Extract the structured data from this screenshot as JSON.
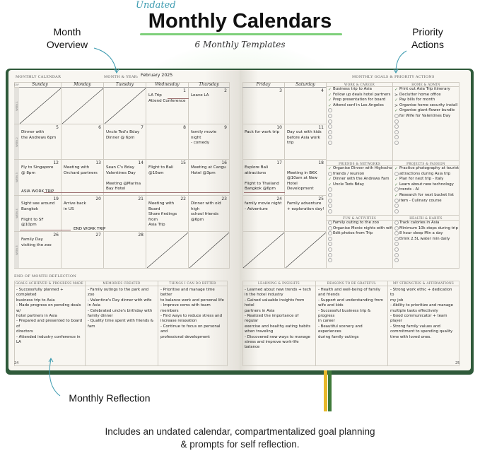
{
  "header": {
    "tag": "Undated",
    "title": "Monthly Calendars",
    "subtitle": "6 Monthly Templates"
  },
  "annotations": {
    "month_overview": "Month\nOverview",
    "priority_actions": "Priority\nActions",
    "monthly_reflection": "Monthly Reflection"
  },
  "footer": {
    "line1": "Includes an undated calendar, compartmentalized goal planning",
    "line2": "& prompts for self reflection."
  },
  "colors": {
    "cover": "#2f5a3a",
    "accent_green": "#7ed07a",
    "arrow_blue": "#3d9bb0",
    "trip_line": "#9c6f6f",
    "ribbon_yellow": "#e8b82a",
    "ribbon_green": "#3f7a3a"
  },
  "calendar": {
    "label": "MONTHLY CALENDAR",
    "month_year_label": "MONTH & YEAR:",
    "month_year_value": "February 2025",
    "day_label": "DAY",
    "days": [
      "Sunday",
      "Monday",
      "Tuesday",
      "Wednesday",
      "Thursday",
      "Friday",
      "Saturday"
    ],
    "weeks": [
      {
        "label": "WEEK 1",
        "cells": [
          {
            "crossed": true
          },
          {
            "crossed": true
          },
          {
            "crossed": true
          },
          {
            "day": "1",
            "text": "LA Trip\nAttend Conference"
          },
          {
            "day": "2",
            "text": "Leave LA"
          },
          {
            "day": "3",
            "text": ""
          },
          {
            "day": "4",
            "text": ""
          }
        ]
      },
      {
        "label": "WEEK 2",
        "cells": [
          {
            "day": "5",
            "text": "Dinner with\nthe Andrews 6pm"
          },
          {
            "day": "6",
            "text": ""
          },
          {
            "day": "7",
            "text": "Uncle Ted's Bday\nDinner @ 6pm"
          },
          {
            "day": "8",
            "text": ""
          },
          {
            "day": "9",
            "text": "family movie night\n- comedy"
          },
          {
            "day": "10",
            "text": "Pack for work trip"
          },
          {
            "day": "11",
            "text": "Day out with kids\nbefore Asia work trip"
          }
        ]
      },
      {
        "label": "WEEK 3",
        "cells": [
          {
            "day": "12",
            "text": "Fly to Singapore\n@ 8pm"
          },
          {
            "day": "13",
            "text": "Meeting with\nOrchard partners"
          },
          {
            "day": "14",
            "text": "Sean C's Bday\nValentines Day\n\nMeeting @Marina\nBay Hotel"
          },
          {
            "day": "15",
            "text": "Flight to Bali\n@10am"
          },
          {
            "day": "16",
            "text": "Meeting at Cangu\nHotel @3pm"
          },
          {
            "day": "17",
            "text": "Explore Bali\nattractions\n\nFlight to Thailand\nBangkok @6pm"
          },
          {
            "day": "18",
            "text": "\nMeeting in BKK\n@10am at New\nHotel Development"
          }
        ]
      },
      {
        "label": "WEEK 4",
        "cells": [
          {
            "day": "19",
            "text": "Sight see around\nBangkok\n\nFlight to SF @10pm"
          },
          {
            "day": "20",
            "text": "Arrive back\nin US"
          },
          {
            "day": "21",
            "text": ""
          },
          {
            "day": "22",
            "text": "Meeting with Board\nShare findings from\nAsia Trip"
          },
          {
            "day": "23",
            "text": "Dinner with old high\nschool friends @6pm"
          },
          {
            "day": "24",
            "text": "family movie night\n- Adventure"
          },
          {
            "day": "25",
            "text": "Family adventure\n+ exploration day!"
          }
        ]
      },
      {
        "label": "WEEK 5",
        "cells": [
          {
            "day": "26",
            "text": "Family Day\nvisiting the zoo"
          },
          {
            "day": "27",
            "text": ""
          },
          {
            "day": "28",
            "text": ""
          },
          {
            "crossed": true
          },
          {
            "crossed": true
          },
          {
            "crossed": true
          },
          {
            "crossed": true
          }
        ]
      }
    ],
    "trips": {
      "asia": "ASIA WORK TRIP",
      "end": "END WORK TRIP"
    }
  },
  "goals": {
    "label": "MONTHLY GOALS & PRIORITY ACTIONS",
    "sections": [
      {
        "title": "WORK & CAREER",
        "items": [
          {
            "s": "check",
            "t": "Business trip to Asia"
          },
          {
            "s": "check",
            "t": "Follow up deals hotel partners"
          },
          {
            "s": "check",
            "t": "Prep presentation for board"
          },
          {
            "s": "check",
            "t": "Attend conf in Los Angeles"
          },
          {
            "s": "empty",
            "t": ""
          },
          {
            "s": "empty",
            "t": ""
          },
          {
            "s": "empty",
            "t": ""
          },
          {
            "s": "empty",
            "t": ""
          },
          {
            "s": "empty",
            "t": ""
          },
          {
            "s": "empty",
            "t": ""
          },
          {
            "s": "empty",
            "t": ""
          }
        ]
      },
      {
        "title": "HOME & ADMIN",
        "items": [
          {
            "s": "check",
            "t": "Print out Asia Trip itinerary"
          },
          {
            "s": "arrow",
            "t": "Declutter home office"
          },
          {
            "s": "check",
            "t": "Pay bills for month"
          },
          {
            "s": "arrow",
            "t": "Organise home security install"
          },
          {
            "s": "check",
            "t": "Organise giant flower bundle"
          },
          {
            "s": "empty",
            "t": "   for Wife for Valentines Day"
          },
          {
            "s": "empty",
            "t": ""
          },
          {
            "s": "empty",
            "t": ""
          },
          {
            "s": "empty",
            "t": ""
          },
          {
            "s": "empty",
            "t": ""
          },
          {
            "s": "empty",
            "t": ""
          }
        ]
      },
      {
        "title": "FRIENDS & NETWORKS",
        "items": [
          {
            "s": "check",
            "t": "Organise Dinner with Highschool"
          },
          {
            "s": "empty",
            "t": "  friends / reunion"
          },
          {
            "s": "check",
            "t": "Dinner with the Andrews Fam"
          },
          {
            "s": "check",
            "t": "Uncle Teds Bday"
          },
          {
            "s": "empty",
            "t": ""
          },
          {
            "s": "empty",
            "t": ""
          },
          {
            "s": "empty",
            "t": ""
          },
          {
            "s": "empty",
            "t": ""
          },
          {
            "s": "empty",
            "t": ""
          }
        ]
      },
      {
        "title": "PROJECTS & PASSION",
        "items": [
          {
            "s": "check",
            "t": "Practice photography at tourist"
          },
          {
            "s": "empty",
            "t": "  attractions during Asia trip"
          },
          {
            "s": "check",
            "t": "Plan for next trip - Italy"
          },
          {
            "s": "check",
            "t": "Learn about new technology"
          },
          {
            "s": "empty",
            "t": "  trends - AI"
          },
          {
            "s": "check",
            "t": "Research for next bucket list"
          },
          {
            "s": "empty",
            "t": "  item - Culinary course"
          },
          {
            "s": "empty",
            "t": ""
          },
          {
            "s": "empty",
            "t": ""
          }
        ]
      },
      {
        "title": "FUN & ACTIVITIES",
        "items": [
          {
            "s": "empty",
            "t": "Family outing to the zoo"
          },
          {
            "s": "empty",
            "t": "Organise Movie nights with wife"
          },
          {
            "s": "empty",
            "t": "Edit photos from Trip"
          },
          {
            "s": "empty",
            "t": ""
          },
          {
            "s": "empty",
            "t": ""
          },
          {
            "s": "empty",
            "t": ""
          },
          {
            "s": "empty",
            "t": ""
          },
          {
            "s": "empty",
            "t": ""
          }
        ]
      },
      {
        "title": "HEALTH & HABITS",
        "items": [
          {
            "s": "empty",
            "t": "Track calories in Asia"
          },
          {
            "s": "empty",
            "t": "Minimum 10k steps during trip"
          },
          {
            "s": "empty",
            "t": "8 hour sleep Min a day"
          },
          {
            "s": "empty",
            "t": "Drink 2.5L water min daily"
          },
          {
            "s": "empty",
            "t": ""
          },
          {
            "s": "empty",
            "t": ""
          },
          {
            "s": "empty",
            "t": ""
          },
          {
            "s": "empty",
            "t": ""
          }
        ]
      }
    ]
  },
  "reflection": {
    "label": "END OF MONTH REFLECTION",
    "columns": [
      {
        "title": "GOALS ACHIEVED & PROGRESS MADE",
        "text": "- Successfully planned + completed\n   business trip to Asia\n- Made progress on pending deals w/\nhotel partners in Asia\n- Prepared and presented to board of\ndirectors\n- Attended industry conference in LA"
      },
      {
        "title": "MEMORIES CREATED",
        "text": "- Family outings to the park and zoo\n- Valentine's Day dinner with wife\n  in Asia\n- Celebrated uncle's birthday with\n  family dinner\n- Quality time spent with friends &\n  fam"
      },
      {
        "title": "THINGS I CAN DO BETTER",
        "text": "- Prioritise and manage time better\n   to balance work and personal life\n- Improve coms with team members\n- Find ways to reduce stress and\n   increase relaxation\n- Continue to focus on personal and\n   professional development"
      },
      {
        "title": "LEARNING & INSIGHTS",
        "text": "- Learned about new trends + tech\nin the hotel industry\n- Gained valuable insights from hotel\npartners in Asia\n- Realized the importance of regular\nexercise and healthy eating habits\nwhen traveling\n- Discovered new ways to manage\nstress and improve work-life balance"
      },
      {
        "title": "REASONS TO BE GRATEFUL",
        "text": "- Health and well-being of family\n  and friends\n- Support and understanding from\n  wife and kids\n- Successful business trip & progress\n  in career\n- Beautiful scenery and experiences\n  during family outings"
      },
      {
        "title": "MY STRENGTHS & AFFIRMATIONS",
        "text": "- Strong work ethic + dedication to\n   my job\n- Ability to prioritize and manage\n   multiple tasks effectively\n- Good communicator + team player\n- Strong family values and\n   commitment to spending quality\n   time with loved ones."
      }
    ]
  },
  "pages": {
    "left": "24",
    "right": "25"
  }
}
